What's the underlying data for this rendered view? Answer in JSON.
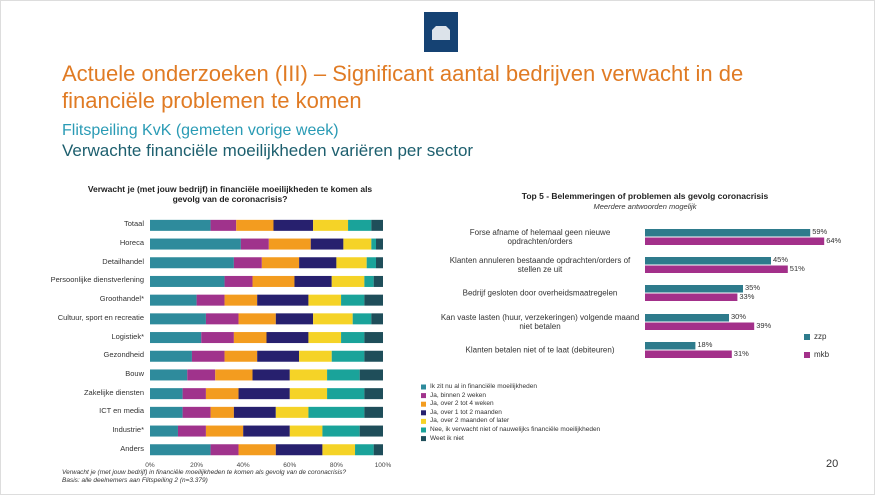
{
  "header": {
    "title": "Actuele onderzoeken (III) – Significant aantal bedrijven verwacht in de financiële problemen te komen",
    "subtitle": "Flitspeiling KvK (gemeten vorige week)",
    "heading": "Verwachte financiële moeilijkheden variëren per sector"
  },
  "page_number": "20",
  "chart_data": [
    {
      "type": "bar",
      "orientation": "horizontal",
      "stacked": true,
      "title": "Verwacht je (met jouw bedrijf) in financiële moeilijkheden te komen als gevolg van de coronacrisis?",
      "categories": [
        "Totaal",
        "Horeca",
        "Detailhandel",
        "Persoonlijke dienstverlening",
        "Groothandel*",
        "Cultuur, sport en recreatie",
        "Logistiek*",
        "Gezondheid",
        "Bouw",
        "Zakelijke diensten",
        "ICT en media",
        "Industrie*",
        "Anders"
      ],
      "series": [
        {
          "name": "Ik zit nu al in financiële moeilijkheden",
          "color": "#2e8b9c",
          "values": [
            26,
            39,
            36,
            32,
            20,
            24,
            22,
            18,
            16,
            14,
            14,
            12,
            26
          ]
        },
        {
          "name": "Ja, binnen 2 weken",
          "color": "#a0338c",
          "values": [
            11,
            12,
            12,
            12,
            12,
            14,
            14,
            14,
            12,
            10,
            12,
            12,
            12
          ]
        },
        {
          "name": "Ja, over 2 tot 4 weken",
          "color": "#f39c1f",
          "values": [
            16,
            18,
            16,
            18,
            14,
            16,
            14,
            14,
            16,
            14,
            10,
            16,
            16
          ]
        },
        {
          "name": "Ja, over 1 tot 2 maanden",
          "color": "#27206e",
          "values": [
            17,
            14,
            16,
            16,
            22,
            16,
            18,
            18,
            16,
            22,
            18,
            20,
            20
          ]
        },
        {
          "name": "Ja, over 2 maanden of later",
          "color": "#f5d327",
          "values": [
            15,
            12,
            13,
            14,
            14,
            17,
            14,
            14,
            16,
            16,
            14,
            14,
            14
          ]
        },
        {
          "name": "Nee, ik verwacht niet of nauwelijks financiële moeilijkheden",
          "color": "#1aa39a",
          "values": [
            10,
            2,
            4,
            4,
            10,
            8,
            10,
            14,
            14,
            16,
            24,
            16,
            8
          ]
        },
        {
          "name": "Weet ik niet",
          "color": "#1f4e5a",
          "values": [
            5,
            3,
            3,
            4,
            8,
            5,
            8,
            8,
            10,
            8,
            8,
            10,
            4
          ]
        }
      ],
      "xlim": [
        0,
        100
      ],
      "xticks": [
        {
          "value": 0,
          "label": "0%"
        },
        {
          "value": 20,
          "label": "20%"
        },
        {
          "value": 40,
          "label": "40%"
        },
        {
          "value": 60,
          "label": "60%"
        },
        {
          "value": 80,
          "label": "80%"
        },
        {
          "value": 100,
          "label": "100%"
        }
      ],
      "notes": [
        "Verwacht je (met jouw bedrijf) in financiële moeilijkheden te komen als gevolg van de coronacrisis?",
        "Basis: alle deelnemers aan Flitspeiling 2 (n=3.379)"
      ]
    },
    {
      "type": "bar",
      "orientation": "horizontal",
      "title": "Top 5 - Belemmeringen of problemen als gevolg coronacrisis",
      "subtitle": "Meerdere antwoorden mogelijk",
      "categories": [
        "Forse afname of helemaal geen nieuwe opdrachten/orders",
        "Klanten annuleren bestaande opdrachten/orders of stellen ze uit",
        "Bedrijf gesloten door overheidsmaatregelen",
        "Kan vaste lasten (huur, verzekeringen) volgende maand niet betalen",
        "Klanten betalen niet of te laat (debiteuren)"
      ],
      "series": [
        {
          "name": "zzp",
          "color": "#2e7b8c",
          "values": [
            59,
            45,
            35,
            30,
            18
          ],
          "value_labels": [
            "59%",
            "45%",
            "35%",
            "30%",
            "18%"
          ]
        },
        {
          "name": "mkb",
          "color": "#a3308a",
          "values": [
            64,
            51,
            33,
            39,
            31
          ],
          "value_labels": [
            "64%",
            "51%",
            "33%",
            "39%",
            "31%"
          ]
        }
      ],
      "xlim": [
        0,
        70
      ]
    }
  ]
}
